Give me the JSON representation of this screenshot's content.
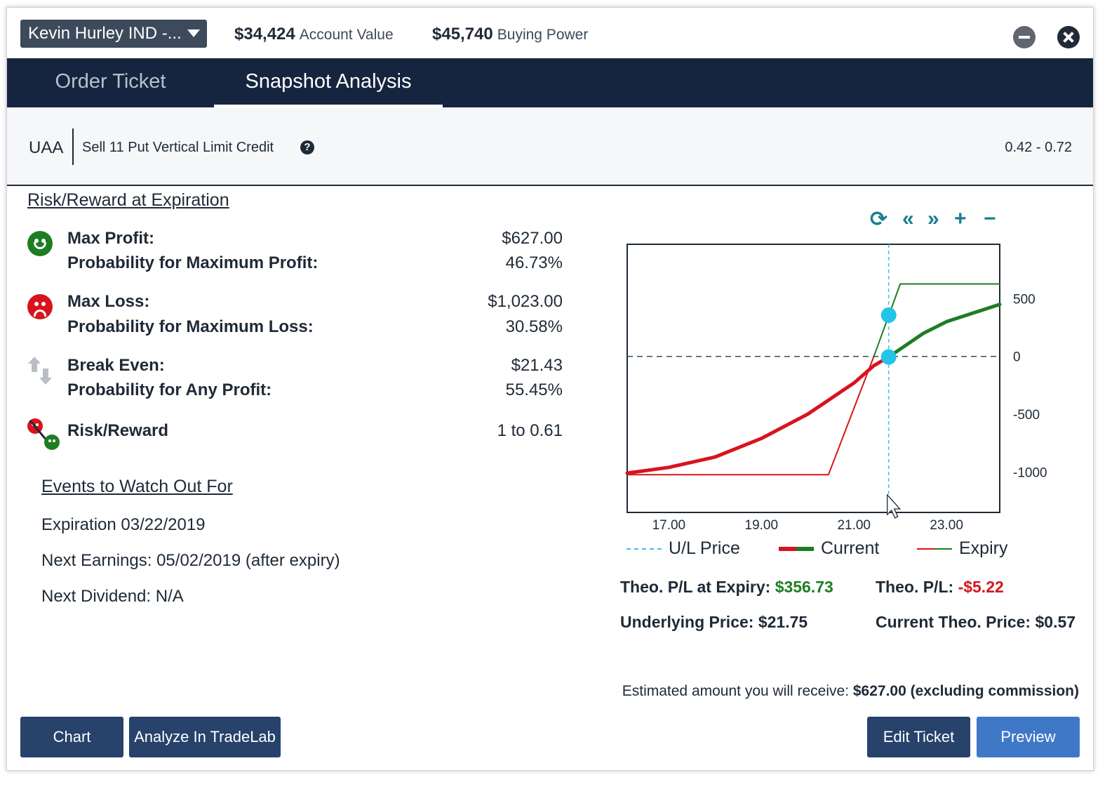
{
  "header": {
    "account_name": "Kevin Hurley IND -...",
    "account_value_amount": "$34,424",
    "account_value_label": "Account Value",
    "buying_power_amount": "$45,740",
    "buying_power_label": "Buying Power"
  },
  "tabs": [
    {
      "label": "Order Ticket",
      "active": false
    },
    {
      "label": "Snapshot Analysis",
      "active": true
    }
  ],
  "order": {
    "symbol": "UAA",
    "description": "Sell 11 Put Vertical Limit Credit",
    "help_glyph": "?",
    "range": "0.42 - 0.72"
  },
  "risk_reward": {
    "title": "Risk/Reward at Expiration",
    "max_profit_label": "Max Profit:",
    "max_profit_value": "$627.00",
    "prob_max_profit_label": "Probability for Maximum Profit:",
    "prob_max_profit_value": "46.73%",
    "max_loss_label": "Max Loss:",
    "max_loss_value": "$1,023.00",
    "prob_max_loss_label": "Probability for Maximum Loss:",
    "prob_max_loss_value": "30.58%",
    "break_even_label": "Break Even:",
    "break_even_value": "$21.43",
    "prob_any_profit_label": "Probability for Any Profit:",
    "prob_any_profit_value": "55.45%",
    "risk_reward_label": "Risk/Reward",
    "risk_reward_value": "1 to 0.61"
  },
  "events": {
    "title": "Events to Watch Out For",
    "expiration": "Expiration 03/22/2019",
    "next_earnings": "Next Earnings: 05/02/2019 (after expiry)",
    "next_dividend": "Next Dividend: N/A"
  },
  "chart_controls": {
    "refresh_glyph": "⟳",
    "back_glyph": "«",
    "forward_glyph": "»",
    "zoom_in_glyph": "+",
    "zoom_out_glyph": "−"
  },
  "chart_data": {
    "type": "line",
    "xlim": [
      16.1,
      24.15
    ],
    "ylim": [
      -1350,
      970
    ],
    "x_ticks": [
      "17.00",
      "19.00",
      "21.00",
      "23.00"
    ],
    "x_tick_values": [
      17,
      19,
      21,
      23
    ],
    "y_ticks": [
      "500",
      "0",
      "-500",
      "-1000"
    ],
    "y_tick_values": [
      500,
      0,
      -500,
      -1000
    ],
    "zero_line": true,
    "underlying_price": 21.75,
    "legend_position": "bottom",
    "series": [
      {
        "name": "U/L Price",
        "style": "dashed",
        "color": "#3cc6e0"
      },
      {
        "name": "Current",
        "color_below_zero": "#d7141d",
        "color_above_zero": "#1e7d22",
        "x": [
          16.1,
          17.0,
          18.0,
          19.0,
          20.0,
          21.0,
          21.43,
          21.75,
          22.5,
          23.0,
          24.15
        ],
        "y": [
          -1010,
          -960,
          -870,
          -710,
          -500,
          -230,
          -80,
          -5,
          200,
          300,
          450
        ]
      },
      {
        "name": "Expiry",
        "color_below_zero": "#d7141d",
        "color_above_zero": "#1e7d22",
        "x": [
          16.1,
          20.45,
          21.43,
          22.0,
          24.15
        ],
        "y": [
          -1023,
          -1023,
          0,
          627,
          627
        ]
      }
    ],
    "markers": [
      {
        "x": 21.75,
        "y": 357,
        "color": "#23c4e6"
      },
      {
        "x": 21.75,
        "y": -5,
        "color": "#23c4e6"
      }
    ]
  },
  "theo": {
    "pl_expiry_label": "Theo. P/L at Expiry:",
    "pl_expiry_value": "$356.73",
    "pl_label": "Theo. P/L:",
    "pl_value": "-$5.22",
    "underlying_label": "Underlying Price: $21.75",
    "current_theo_label": "Current Theo. Price: $0.57"
  },
  "estimate": {
    "prefix": "Estimated amount you will receive: ",
    "amount": "$627.00 (excluding commission)"
  },
  "buttons": {
    "chart": "Chart",
    "analyze": "Analyze In TradeLab",
    "edit": "Edit Ticket",
    "preview": "Preview"
  }
}
